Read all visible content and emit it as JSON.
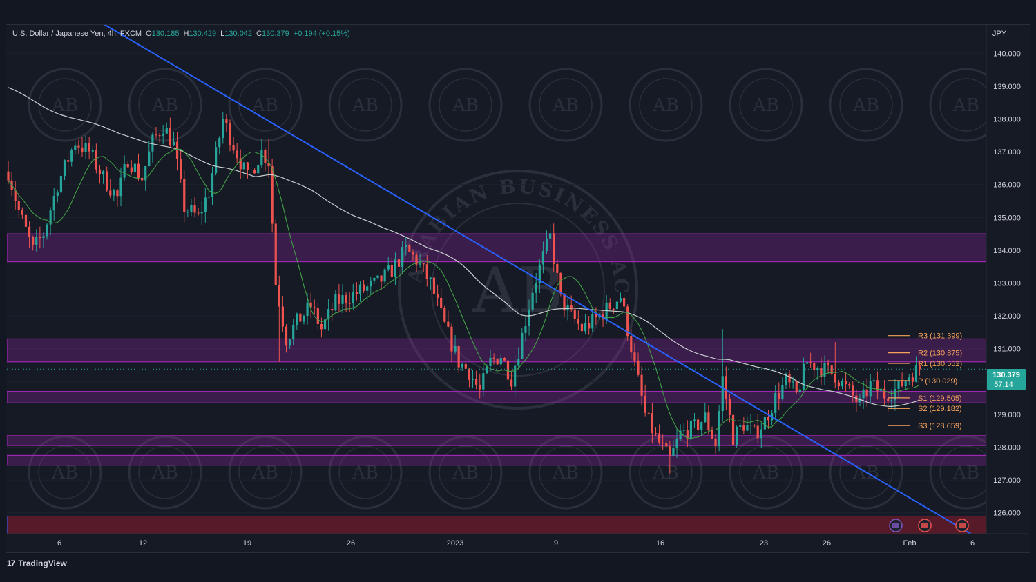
{
  "header": {
    "symbol": "U.S. Dollar / Japanese Yen, 4h, FXCM",
    "open_label": "O",
    "open": "130.185",
    "high_label": "H",
    "high": "130.429",
    "low_label": "L",
    "low": "130.042",
    "close_label": "C",
    "close": "130.379",
    "change": "+0.194 (+0.15%)"
  },
  "axis": {
    "currency": "JPY",
    "y_ticks": [
      "140.000",
      "139.000",
      "138.000",
      "137.000",
      "136.000",
      "135.000",
      "134.000",
      "133.000",
      "132.000",
      "131.000",
      "129.000",
      "128.000",
      "127.000",
      "126.000"
    ],
    "x_ticks": [
      "6",
      "12",
      "19",
      "26",
      "2023",
      "9",
      "16",
      "23",
      "26",
      "Feb",
      "6"
    ]
  },
  "price_tag": {
    "price": "130.379",
    "countdown": "57:14"
  },
  "pivots": [
    {
      "label": "R3 (131.399)",
      "value": 131.399
    },
    {
      "label": "R2 (130.875)",
      "value": 130.875
    },
    {
      "label": "R1 (130.552)",
      "value": 130.552
    },
    {
      "label": "P (130.029)",
      "value": 130.029
    },
    {
      "label": "S1 (129.505)",
      "value": 129.505
    },
    {
      "label": "S2 (129.182)",
      "value": 129.182
    },
    {
      "label": "S3 (128.659)",
      "value": 128.659
    }
  ],
  "zones": [
    {
      "from": 133.65,
      "to": 134.5
    },
    {
      "from": 130.6,
      "to": 131.3
    },
    {
      "from": 129.35,
      "to": 129.7
    },
    {
      "from": 128.05,
      "to": 128.35
    },
    {
      "from": 127.45,
      "to": 127.75
    }
  ],
  "watermark": "ARABIAN BUSINESS ACADEMY",
  "watermark_mark": "AB",
  "brand": "TradingView",
  "colors": {
    "bull": "#26a69a",
    "bear": "#ef5350",
    "zone": "#9c27b0",
    "trendline": "#2962ff",
    "pivot": "#f7a35c",
    "ma_fast": "#43a047",
    "ma_slow": "#c8d0cf"
  },
  "chart_data": {
    "type": "candlestick",
    "title": "U.S. Dollar / Japanese Yen, 4h, FXCM",
    "ylim": [
      125.5,
      141.0
    ],
    "x_labels": [
      "6",
      "12",
      "19",
      "26",
      "2023",
      "9",
      "16",
      "23",
      "26",
      "Feb",
      "6"
    ],
    "anchors": [
      {
        "t": 0,
        "p": 136.4
      },
      {
        "t": 3,
        "p": 135.2
      },
      {
        "t": 7,
        "p": 134.0
      },
      {
        "t": 10,
        "p": 134.5
      },
      {
        "t": 14,
        "p": 136.0
      },
      {
        "t": 19,
        "p": 137.3
      },
      {
        "t": 23,
        "p": 137.0
      },
      {
        "t": 27,
        "p": 136.2
      },
      {
        "t": 31,
        "p": 135.6
      },
      {
        "t": 34,
        "p": 136.8
      },
      {
        "t": 38,
        "p": 136.2
      },
      {
        "t": 41,
        "p": 137.3
      },
      {
        "t": 44,
        "p": 137.8
      },
      {
        "t": 47,
        "p": 137.2
      },
      {
        "t": 50,
        "p": 135.3
      },
      {
        "t": 54,
        "p": 135.0
      },
      {
        "t": 57,
        "p": 135.8
      },
      {
        "t": 61,
        "p": 138.0
      },
      {
        "t": 64,
        "p": 137.2
      },
      {
        "t": 68,
        "p": 136.2
      },
      {
        "t": 72,
        "p": 137.0
      },
      {
        "t": 74,
        "p": 136.7
      },
      {
        "t": 76,
        "p": 133.0
      },
      {
        "t": 79,
        "p": 131.3
      },
      {
        "t": 82,
        "p": 131.8
      },
      {
        "t": 86,
        "p": 132.3
      },
      {
        "t": 89,
        "p": 131.6
      },
      {
        "t": 93,
        "p": 132.4
      },
      {
        "t": 97,
        "p": 132.6
      },
      {
        "t": 101,
        "p": 132.8
      },
      {
        "t": 105,
        "p": 133.0
      },
      {
        "t": 109,
        "p": 133.4
      },
      {
        "t": 113,
        "p": 134.0
      },
      {
        "t": 116,
        "p": 133.7
      },
      {
        "t": 120,
        "p": 133.0
      },
      {
        "t": 124,
        "p": 131.7
      },
      {
        "t": 128,
        "p": 130.6
      },
      {
        "t": 131,
        "p": 130.3
      },
      {
        "t": 134,
        "p": 129.7
      },
      {
        "t": 137,
        "p": 130.6
      },
      {
        "t": 140,
        "p": 130.8
      },
      {
        "t": 143,
        "p": 130.1
      },
      {
        "t": 146,
        "p": 131.4
      },
      {
        "t": 149,
        "p": 132.8
      },
      {
        "t": 152,
        "p": 133.8
      },
      {
        "t": 154,
        "p": 134.4
      },
      {
        "t": 157,
        "p": 132.5
      },
      {
        "t": 160,
        "p": 132.0
      },
      {
        "t": 163,
        "p": 131.6
      },
      {
        "t": 167,
        "p": 131.9
      },
      {
        "t": 171,
        "p": 132.3
      },
      {
        "t": 174,
        "p": 132.6
      },
      {
        "t": 176,
        "p": 131.6
      },
      {
        "t": 178,
        "p": 130.5
      },
      {
        "t": 181,
        "p": 129.0
      },
      {
        "t": 184,
        "p": 128.3
      },
      {
        "t": 188,
        "p": 127.6
      },
      {
        "t": 191,
        "p": 128.4
      },
      {
        "t": 195,
        "p": 128.6
      },
      {
        "t": 198,
        "p": 128.9
      },
      {
        "t": 201,
        "p": 128.1
      },
      {
        "t": 203,
        "p": 130.1
      },
      {
        "t": 206,
        "p": 128.3
      },
      {
        "t": 209,
        "p": 128.7
      },
      {
        "t": 212,
        "p": 128.4
      },
      {
        "t": 215,
        "p": 128.8
      },
      {
        "t": 218,
        "p": 129.5
      },
      {
        "t": 221,
        "p": 130.0
      },
      {
        "t": 224,
        "p": 129.6
      },
      {
        "t": 227,
        "p": 130.6
      },
      {
        "t": 231,
        "p": 130.4
      },
      {
        "t": 235,
        "p": 130.2
      },
      {
        "t": 238,
        "p": 129.8
      },
      {
        "t": 242,
        "p": 129.3
      },
      {
        "t": 245,
        "p": 129.9
      },
      {
        "t": 249,
        "p": 129.6
      },
      {
        "t": 253,
        "p": 129.8
      },
      {
        "t": 256,
        "p": 130.2
      },
      {
        "t": 259,
        "p": 130.38
      }
    ],
    "trendline": [
      {
        "t": 12,
        "p": 141.0
      },
      {
        "t": 274,
        "p": 125.5
      }
    ],
    "overlays": [
      "20-period moving average (green)",
      "200-period moving average (white)",
      "Support/resistance zones (purple)",
      "Pivot points R3-S3"
    ]
  }
}
